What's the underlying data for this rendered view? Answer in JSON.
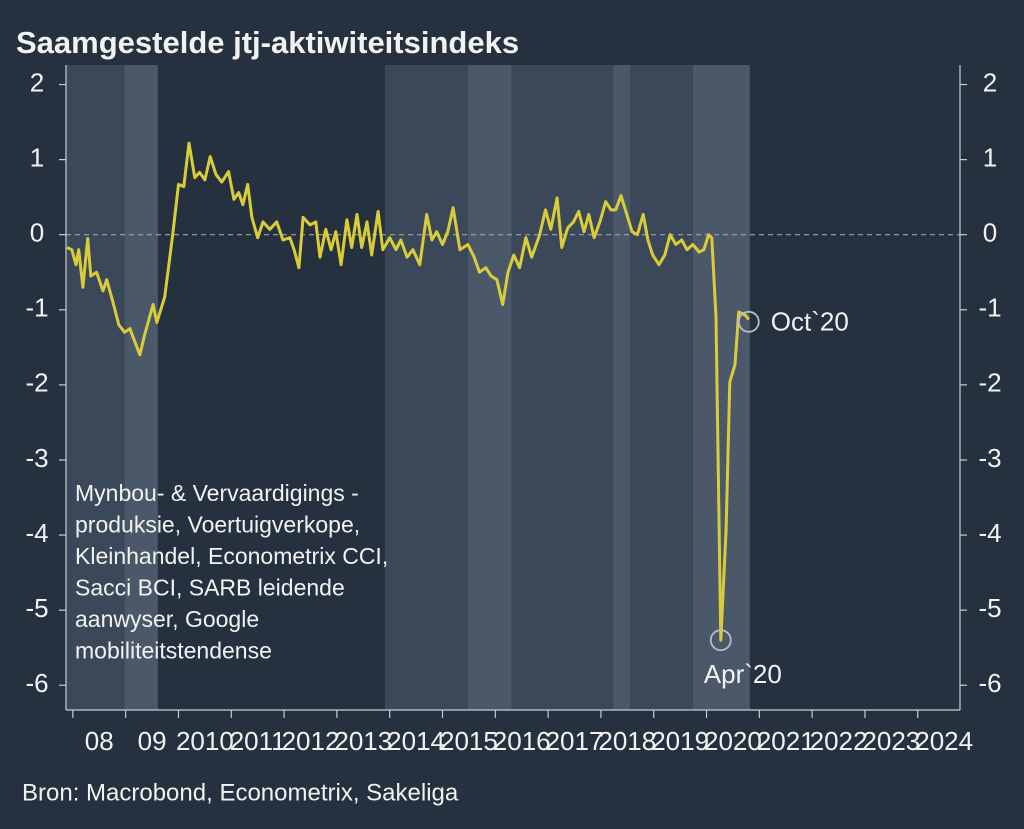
{
  "chart_data": {
    "type": "line",
    "title": "Saamgestelde jtj-aktiwiteitsindeks",
    "source": "Bron: Macrobond, Econometrix, Sakeliga",
    "note": [
      "Mynbou- & Vervaardigings -",
      "produksie, Voertuigverkope,",
      "Kleinhandel, Econometrix CCI,",
      "Sacci BCI, SARB leidende",
      "aanwyser, Google",
      "mobiliteitstendense"
    ],
    "color": "#d9cc3a",
    "x": [
      2007.89,
      2007.98,
      2008.06,
      2008.11,
      2008.19,
      2008.28,
      2008.34,
      2008.45,
      2008.57,
      2008.64,
      2008.76,
      2008.87,
      2008.98,
      2009.08,
      2009.16,
      2009.27,
      2009.36,
      2009.52,
      2009.59,
      2009.74,
      2009.89,
      2010.0,
      2010.1,
      2010.2,
      2010.31,
      2010.4,
      2010.5,
      2010.6,
      2010.71,
      2010.82,
      2010.95,
      2011.05,
      2011.14,
      2011.22,
      2011.31,
      2011.39,
      2011.5,
      2011.6,
      2011.73,
      2011.86,
      2011.98,
      2012.11,
      2012.19,
      2012.28,
      2012.36,
      2012.49,
      2012.6,
      2012.68,
      2012.79,
      2012.89,
      2012.98,
      2013.08,
      2013.19,
      2013.28,
      2013.38,
      2013.47,
      2013.57,
      2013.66,
      2013.78,
      2013.87,
      2014.0,
      2014.12,
      2014.21,
      2014.33,
      2014.44,
      2014.57,
      2014.7,
      2014.8,
      2014.89,
      2015.0,
      2015.1,
      2015.2,
      2015.33,
      2015.48,
      2015.6,
      2015.7,
      2015.82,
      2015.92,
      2016.03,
      2016.14,
      2016.24,
      2016.35,
      2016.46,
      2016.58,
      2016.69,
      2016.84,
      2016.95,
      2017.05,
      2017.17,
      2017.26,
      2017.37,
      2017.48,
      2017.58,
      2017.68,
      2017.77,
      2017.87,
      2017.98,
      2018.09,
      2018.19,
      2018.28,
      2018.38,
      2018.49,
      2018.59,
      2018.69,
      2018.8,
      2018.89,
      2018.98,
      2019.1,
      2019.21,
      2019.31,
      2019.42,
      2019.53,
      2019.63,
      2019.74,
      2019.86,
      2019.95,
      2020.04,
      2020.1,
      2020.18,
      2020.27,
      2020.37,
      2020.44,
      2020.54,
      2020.61,
      2020.73,
      2020.8
    ],
    "values": [
      -0.17,
      -0.2,
      -0.4,
      -0.2,
      -0.7,
      -0.05,
      -0.55,
      -0.5,
      -0.75,
      -0.6,
      -0.9,
      -1.2,
      -1.3,
      -1.25,
      -1.4,
      -1.6,
      -1.33,
      -0.93,
      -1.17,
      -0.83,
      0,
      0.67,
      0.64,
      1.22,
      0.76,
      0.83,
      0.73,
      1.04,
      0.8,
      0.7,
      0.84,
      0.47,
      0.56,
      0.4,
      0.67,
      0.23,
      -0.04,
      0.17,
      0.07,
      0.17,
      -0.07,
      -0.04,
      -0.2,
      -0.44,
      0.23,
      0.13,
      0.17,
      -0.3,
      0.07,
      -0.2,
      0.04,
      -0.4,
      0.2,
      -0.17,
      0.27,
      -0.17,
      0.17,
      -0.27,
      0.31,
      -0.2,
      -0.04,
      -0.2,
      -0.07,
      -0.3,
      -0.2,
      -0.4,
      0.27,
      -0.07,
      0.04,
      -0.13,
      0.04,
      0.36,
      -0.2,
      -0.13,
      -0.3,
      -0.5,
      -0.44,
      -0.55,
      -0.6,
      -0.93,
      -0.5,
      -0.27,
      -0.44,
      -0.04,
      -0.3,
      0,
      0.33,
      0.07,
      0.49,
      -0.17,
      0.09,
      0.17,
      0.31,
      0.04,
      0.27,
      -0.04,
      0.17,
      0.44,
      0.33,
      0.33,
      0.52,
      0.27,
      0.04,
      0,
      0.27,
      -0.07,
      -0.27,
      -0.4,
      -0.27,
      0,
      -0.13,
      -0.07,
      -0.2,
      -0.13,
      -0.23,
      -0.2,
      0,
      -0.04,
      -1.1,
      -5.4,
      -3.93,
      -1.96,
      -1.73,
      -1.03,
      -1.07,
      -1.13
    ],
    "annotations": [
      {
        "text": "Apr`20",
        "x": 2020.27,
        "y": -5.4
      },
      {
        "text": "Oct`20",
        "x": 2020.8,
        "y": -1.16
      }
    ],
    "bands": [
      {
        "start": 2007.87,
        "end": 2008.98,
        "color": "#3a4859"
      },
      {
        "start": 2008.98,
        "end": 2009.61,
        "color": "#4b5869"
      },
      {
        "start": 2013.91,
        "end": 2015.48,
        "color": "#3a4859"
      },
      {
        "start": 2015.48,
        "end": 2016.31,
        "color": "#4b5869"
      },
      {
        "start": 2016.31,
        "end": 2018.23,
        "color": "#3a4859"
      },
      {
        "start": 2018.23,
        "end": 2018.55,
        "color": "#4b5869"
      },
      {
        "start": 2018.55,
        "end": 2019.74,
        "color": "#3a4859"
      },
      {
        "start": 2019.74,
        "end": 2020.82,
        "color": "#4b5869"
      }
    ],
    "xlim": [
      2007.87,
      2024.8
    ],
    "xticks": [
      {
        "value": 2008,
        "label": "08"
      },
      {
        "value": 2009,
        "label": "09"
      },
      2010,
      2011,
      2012,
      2013,
      2014,
      2015,
      2016,
      2017,
      2018,
      2019,
      2020,
      2021,
      2022,
      2023,
      2024
    ],
    "ylim": [
      -6.33,
      2.26
    ],
    "yticks": [
      -6,
      -5,
      -4,
      -3,
      -2,
      -1,
      0,
      1,
      2
    ],
    "y2lim": [
      -6.33,
      2.26
    ],
    "y2ticks": [
      -6,
      -5,
      -4,
      -3,
      -2,
      -1,
      0,
      1,
      2
    ],
    "zero_line": true
  }
}
